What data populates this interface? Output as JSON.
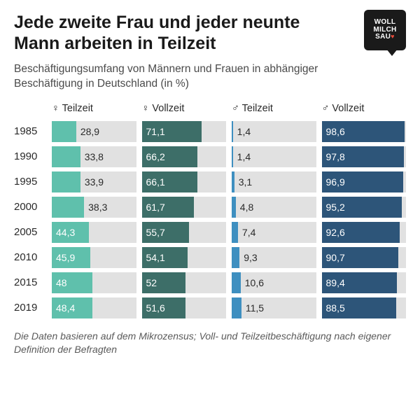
{
  "logo": {
    "line1": "WOLL",
    "line2": "MILCH",
    "line3": "SAU"
  },
  "title": "Jede zweite Frau und jeder neunte Mann arbeiten in Teilzeit",
  "subtitle": "Beschäftigungsumfang von Männern und Frauen in abhängiger Beschäftigung in Deutschland (in %)",
  "columns": [
    {
      "label": "♀ Teilzeit",
      "color": "#5fc0ac",
      "track": "#e1e1e1",
      "text_inside": "#ffffff",
      "text_outside": "#2a2a2a"
    },
    {
      "label": "♀ Vollzeit",
      "color": "#3d6e68",
      "track": "#e1e1e1",
      "text_inside": "#ffffff",
      "text_outside": "#2a2a2a"
    },
    {
      "label": "♂ Teilzeit",
      "color": "#3e8fc0",
      "track": "#e1e1e1",
      "text_inside": "#ffffff",
      "text_outside": "#2a2a2a"
    },
    {
      "label": "♂ Vollzeit",
      "color": "#2d5579",
      "track": "#e1e1e1",
      "text_inside": "#ffffff",
      "text_outside": "#2a2a2a"
    }
  ],
  "rows": [
    {
      "year": "1985",
      "values": [
        28.9,
        71.1,
        1.4,
        98.6
      ],
      "labels": [
        "28,9",
        "71,1",
        "1,4",
        "98,6"
      ]
    },
    {
      "year": "1990",
      "values": [
        33.8,
        66.2,
        1.4,
        97.8
      ],
      "labels": [
        "33,8",
        "66,2",
        "1,4",
        "97,8"
      ]
    },
    {
      "year": "1995",
      "values": [
        33.9,
        66.1,
        3.1,
        96.9
      ],
      "labels": [
        "33,9",
        "66,1",
        "3,1",
        "96,9"
      ]
    },
    {
      "year": "2000",
      "values": [
        38.3,
        61.7,
        4.8,
        95.2
      ],
      "labels": [
        "38,3",
        "61,7",
        "4,8",
        "95,2"
      ]
    },
    {
      "year": "2005",
      "values": [
        44.3,
        55.7,
        7.4,
        92.6
      ],
      "labels": [
        "44,3",
        "55,7",
        "7,4",
        "92,6"
      ]
    },
    {
      "year": "2010",
      "values": [
        45.9,
        54.1,
        9.3,
        90.7
      ],
      "labels": [
        "45,9",
        "54,1",
        "9,3",
        "90,7"
      ]
    },
    {
      "year": "2015",
      "values": [
        48.0,
        52.0,
        10.6,
        89.4
      ],
      "labels": [
        "48",
        "52",
        "10,6",
        "89,4"
      ]
    },
    {
      "year": "2019",
      "values": [
        48.4,
        51.6,
        11.5,
        88.5
      ],
      "labels": [
        "48,4",
        "51,6",
        "11,5",
        "88,5"
      ]
    }
  ],
  "label_inside_threshold": 40,
  "footnote": "Die Daten basieren auf dem Mikrozensus; Voll- und Teilzeitbeschäftigung nach eigener Definition der Befragten"
}
